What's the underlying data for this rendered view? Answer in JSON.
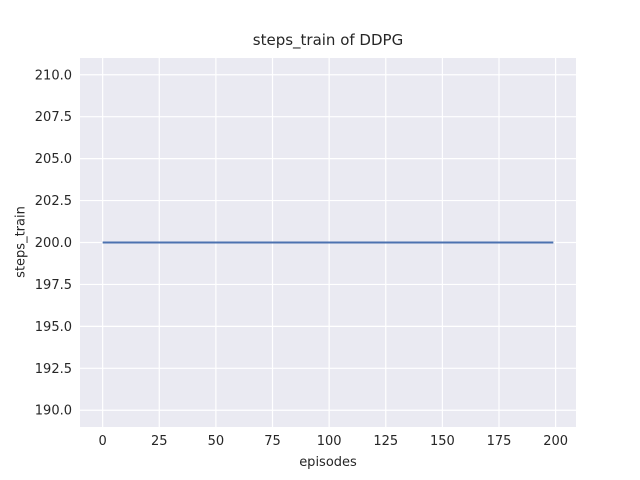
{
  "chart_data": {
    "type": "line",
    "title": "steps_train of DDPG",
    "xlabel": "episodes",
    "ylabel": "steps_train",
    "x_ticks": [
      0,
      25,
      50,
      75,
      100,
      125,
      150,
      175,
      200
    ],
    "x_tick_labels": [
      "0",
      "25",
      "50",
      "75",
      "100",
      "125",
      "150",
      "175",
      "200"
    ],
    "y_ticks": [
      190.0,
      192.5,
      195.0,
      197.5,
      200.0,
      202.5,
      205.0,
      207.5,
      210.0
    ],
    "y_tick_labels": [
      "190.0",
      "192.5",
      "195.0",
      "197.5",
      "200.0",
      "202.5",
      "205.0",
      "207.5",
      "210.0"
    ],
    "xlim": [
      -10,
      209
    ],
    "ylim": [
      189,
      211
    ],
    "grid": true,
    "legend_position": "none",
    "series": [
      {
        "name": "steps_train",
        "color": "#4c72b0",
        "note": "constant value 200 for every episode 0 through 199",
        "x": [
          0,
          199
        ],
        "y": [
          200,
          200
        ]
      }
    ],
    "style": {
      "figure_bg": "#ffffff",
      "axes_bg": "#eaeaf2",
      "grid_color": "#ffffff",
      "text_color": "#262626",
      "line_width": 2
    }
  }
}
